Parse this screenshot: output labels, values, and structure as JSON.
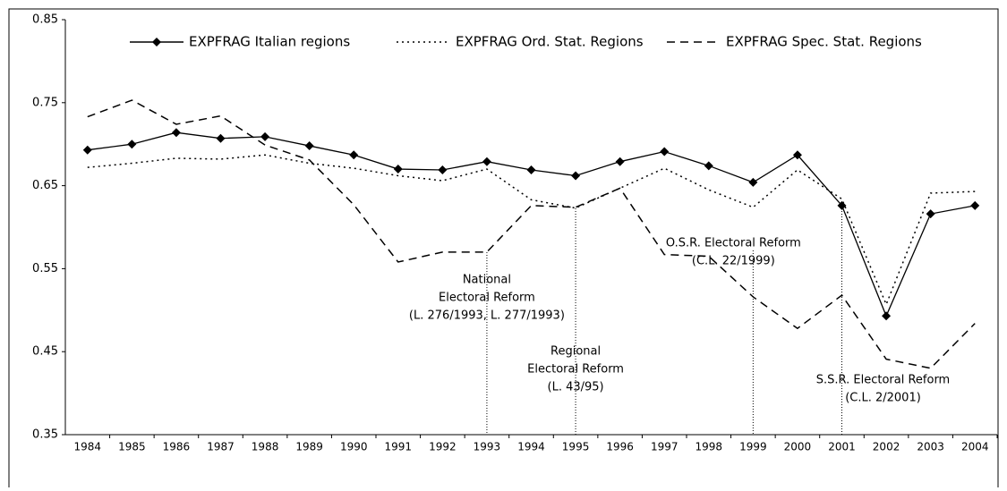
{
  "chart_data": {
    "type": "line",
    "categories": [
      "1984",
      "1985",
      "1986",
      "1987",
      "1988",
      "1989",
      "1990",
      "1991",
      "1992",
      "1993",
      "1994",
      "1995",
      "1996",
      "1997",
      "1998",
      "1999",
      "2000",
      "2001",
      "2002",
      "2003",
      "2004"
    ],
    "series": [
      {
        "name": "EXPFRAG Italian regions",
        "color": "#000000",
        "dash": "solid",
        "marker": "diamond",
        "values": [
          0.693,
          0.7,
          0.714,
          0.707,
          0.709,
          0.698,
          0.687,
          0.67,
          0.669,
          0.679,
          0.669,
          0.662,
          0.679,
          0.691,
          0.674,
          0.654,
          0.687,
          0.626,
          0.493,
          0.616,
          0.626
        ]
      },
      {
        "name": "EXPFRAG Ord. Stat. Regions",
        "color": "#000000",
        "dash": "dotted",
        "values": [
          0.672,
          0.677,
          0.683,
          0.682,
          0.687,
          0.677,
          0.671,
          0.662,
          0.656,
          0.67,
          0.633,
          0.623,
          0.647,
          0.671,
          0.645,
          0.624,
          0.669,
          0.634,
          0.507,
          0.641,
          0.643
        ]
      },
      {
        "name": "EXPFRAG Spec. Stat. Regions",
        "color": "#000000",
        "dash": "dashed",
        "values": [
          0.733,
          0.753,
          0.724,
          0.734,
          0.699,
          0.681,
          0.627,
          0.558,
          0.57,
          0.57,
          0.626,
          0.624,
          0.647,
          0.567,
          0.565,
          0.516,
          0.478,
          0.518,
          0.441,
          0.43,
          0.484
        ]
      }
    ],
    "ylim": [
      0.35,
      0.85
    ],
    "yticks": [
      0.35,
      0.45,
      0.55,
      0.65,
      0.75,
      0.85
    ],
    "grid": false,
    "legend": "top",
    "annotations": [
      {
        "x": "1993",
        "lines": [
          "National",
          "Electoral Reform",
          "(L. 276/1993, L. 277/1993)"
        ]
      },
      {
        "x": "1995",
        "lines": [
          "Regional",
          "Electoral Reform",
          "(L. 43/95)"
        ]
      },
      {
        "x": "1999",
        "lines": [
          "O.S.R. Electoral Reform",
          "(C.L. 22/1999)"
        ]
      },
      {
        "x": "2001",
        "lines": [
          "S.S.R. Electoral Reform",
          "(C.L. 2/2001)"
        ]
      }
    ]
  }
}
